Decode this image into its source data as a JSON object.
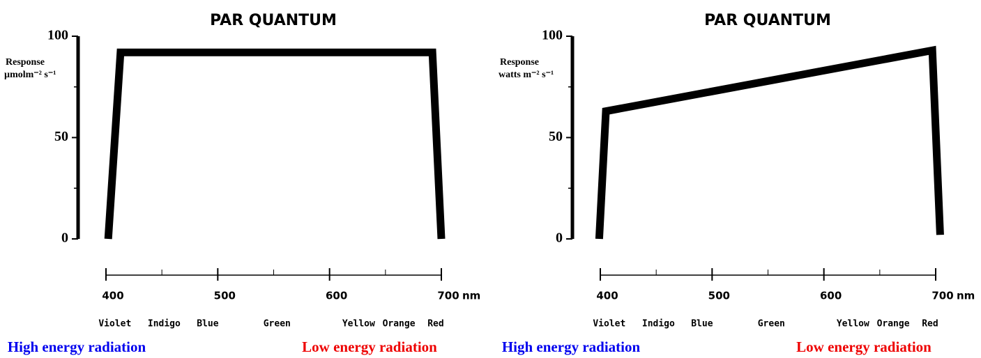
{
  "chart_data": [
    {
      "type": "line",
      "title": "PAR QUANTUM",
      "ylabel": "Response",
      "yunit": "µmolm⁻² s⁻¹",
      "xlabel": "nm",
      "xlim": [
        400,
        700
      ],
      "xticks": [
        400,
        500,
        600,
        700
      ],
      "xminorticks": [
        450,
        550,
        650
      ],
      "ylim": [
        0,
        100
      ],
      "yticks": [
        0,
        50,
        100
      ],
      "yminorticks": [
        25,
        75
      ],
      "series": [
        {
          "color": "#000000",
          "x": [
            402,
            413,
            692,
            700
          ],
          "values": [
            0,
            92,
            92,
            0
          ]
        }
      ],
      "spectrum": [
        {
          "label": "Violet",
          "x": 408
        },
        {
          "label": "Indigo",
          "x": 452
        },
        {
          "label": "Blue",
          "x": 491
        },
        {
          "label": "Green",
          "x": 553
        },
        {
          "label": "Yellow",
          "x": 626
        },
        {
          "label": "Orange",
          "x": 662
        },
        {
          "label": "Red",
          "x": 695
        }
      ],
      "annotations": [
        {
          "text": "High energy radiation",
          "color": "#0000ee"
        },
        {
          "text": "Low energy radiation",
          "color": "#ee0000"
        }
      ]
    },
    {
      "type": "line",
      "title": "PAR QUANTUM",
      "ylabel": "Response",
      "yunit": "watts m⁻² s⁻¹",
      "xlabel": "nm",
      "xlim": [
        400,
        700
      ],
      "xticks": [
        400,
        500,
        600,
        700
      ],
      "xminorticks": [
        450,
        550,
        650
      ],
      "ylim": [
        0,
        100
      ],
      "yticks": [
        0,
        50,
        100
      ],
      "yminorticks": [
        25,
        75
      ],
      "series": [
        {
          "color": "#000000",
          "x": [
            399,
            405,
            697,
            704
          ],
          "values": [
            0,
            63,
            93,
            2
          ]
        }
      ],
      "spectrum": [
        {
          "label": "Violet",
          "x": 408
        },
        {
          "label": "Indigo",
          "x": 452
        },
        {
          "label": "Blue",
          "x": 491
        },
        {
          "label": "Green",
          "x": 553
        },
        {
          "label": "Yellow",
          "x": 626
        },
        {
          "label": "Orange",
          "x": 662
        },
        {
          "label": "Red",
          "x": 695
        }
      ],
      "annotations": [
        {
          "text": "High energy radiation",
          "color": "#0000ee"
        },
        {
          "text": "Low energy radiation",
          "color": "#ee0000"
        }
      ]
    }
  ]
}
